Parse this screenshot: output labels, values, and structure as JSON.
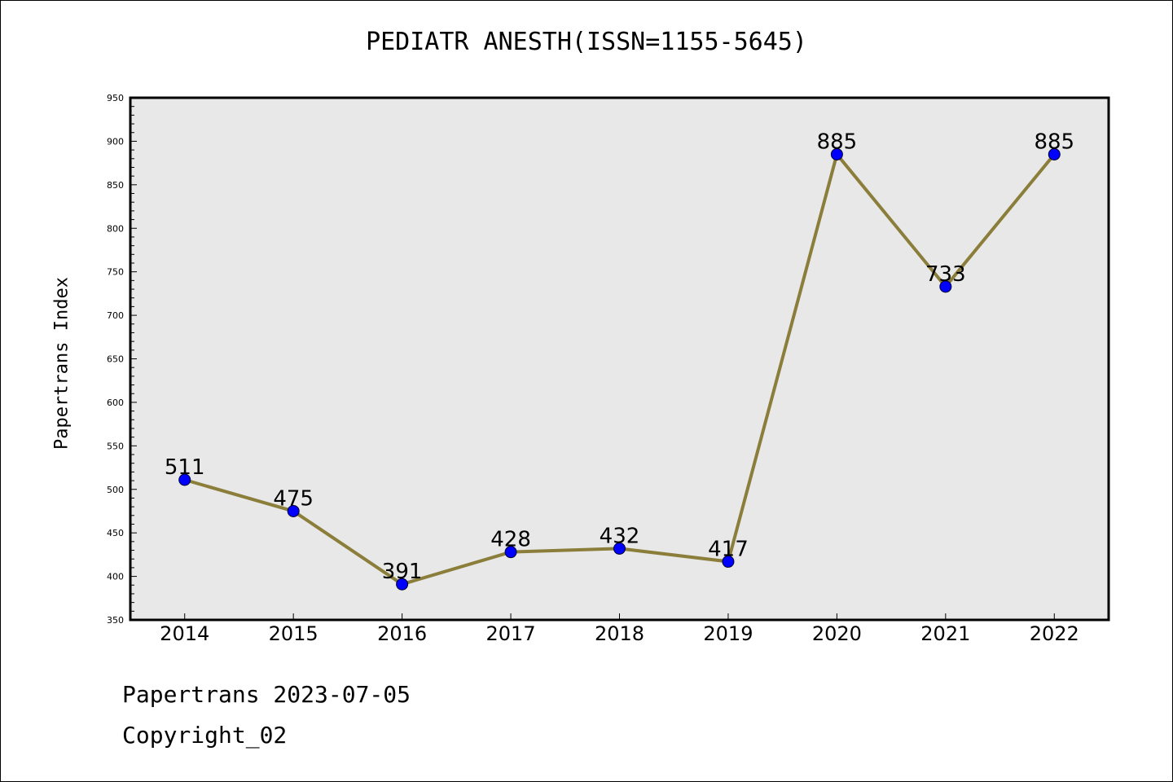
{
  "chart_data": {
    "type": "line",
    "title": "PEDIATR ANESTH(ISSN=1155-5645)",
    "xlabel": "",
    "ylabel": "Papertrans Index",
    "categories": [
      "2014",
      "2015",
      "2016",
      "2017",
      "2018",
      "2019",
      "2020",
      "2021",
      "2022"
    ],
    "values": [
      511,
      475,
      391,
      428,
      432,
      417,
      885,
      733,
      885
    ],
    "ylim": [
      350,
      950
    ],
    "yticks": [
      350,
      400,
      450,
      500,
      550,
      600,
      650,
      700,
      750,
      800,
      850,
      900,
      950
    ],
    "grid": false,
    "legend": "none",
    "colors": {
      "line": "#8b7d3a",
      "marker": "#0000ff",
      "plot_background": "#e8e8e8"
    }
  },
  "footer": {
    "line1": "Papertrans 2023-07-05",
    "line2": "Copyright_02"
  }
}
